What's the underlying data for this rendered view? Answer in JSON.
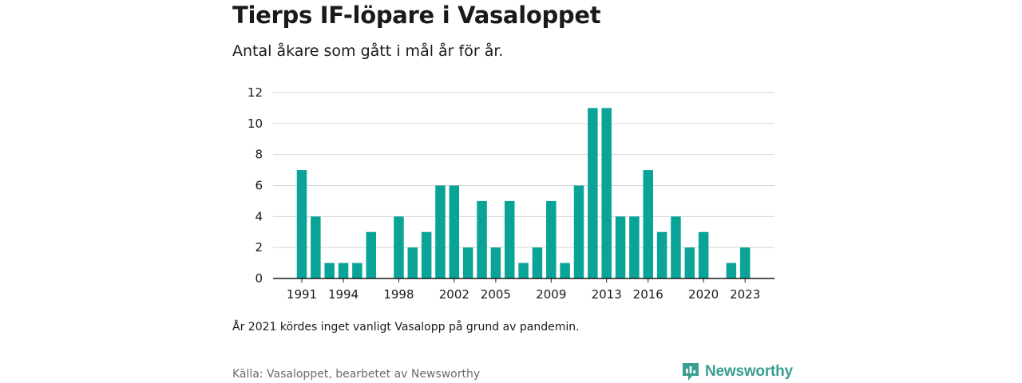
{
  "title": "Tierps IF-löpare i Vasaloppet",
  "subtitle": "Antal åkare som gått i mål år för år.",
  "note": "År 2021 kördes inget vanligt Vasalopp på grund av pandemin.",
  "source": "Källa: Vasaloppet, bearbetet av Newsworthy",
  "logo": {
    "text": "Newsworthy",
    "icon": "newsworthy-logo-icon",
    "color": "#3a9d8f"
  },
  "colors": {
    "bar": "#0aa398",
    "grid": "#d6d6d6",
    "axis": "#1a1a1a"
  },
  "chart_data": {
    "type": "bar",
    "title": "Tierps IF-löpare i Vasaloppet",
    "subtitle": "Antal åkare som gått i mål år för år.",
    "xlabel": "",
    "ylabel": "",
    "x": [
      1991,
      1992,
      1993,
      1994,
      1995,
      1996,
      1997,
      1998,
      1999,
      2000,
      2001,
      2002,
      2003,
      2004,
      2005,
      2006,
      2007,
      2008,
      2009,
      2010,
      2011,
      2012,
      2013,
      2014,
      2015,
      2016,
      2017,
      2018,
      2019,
      2020,
      2021,
      2022,
      2023
    ],
    "values": [
      7,
      4,
      1,
      1,
      1,
      3,
      0,
      4,
      2,
      3,
      6,
      6,
      2,
      5,
      2,
      5,
      1,
      2,
      5,
      1,
      6,
      11,
      11,
      4,
      4,
      7,
      3,
      4,
      2,
      3,
      0,
      1,
      2
    ],
    "x_ticks": [
      1991,
      1994,
      1998,
      2002,
      2005,
      2009,
      2013,
      2016,
      2020,
      2023
    ],
    "y_ticks": [
      0,
      2,
      4,
      6,
      8,
      10,
      12
    ],
    "ylim": [
      0,
      12
    ],
    "grid": true,
    "legend": "none"
  }
}
